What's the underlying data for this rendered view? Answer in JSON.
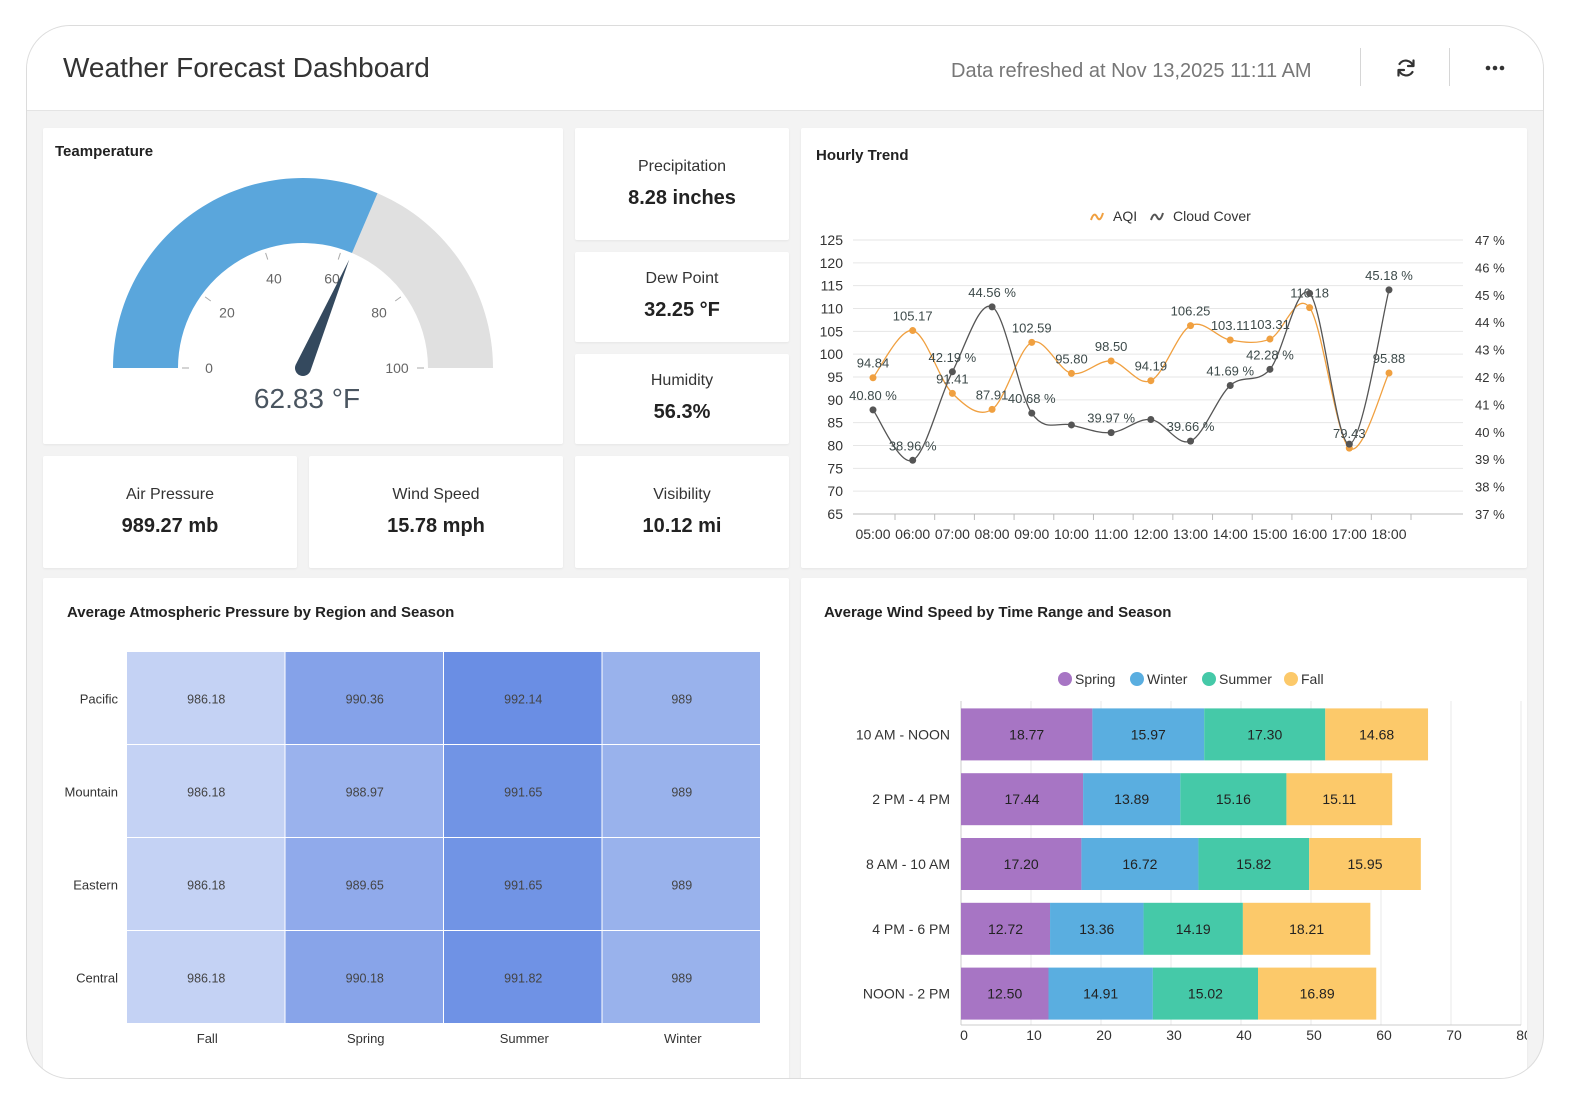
{
  "header": {
    "title": "Weather Forecast Dashboard",
    "refreshed": "Data refreshed at Nov 13,2025 11:11 AM",
    "refresh_icon": "refresh-icon",
    "more_icon": "more-horizontal-icon"
  },
  "colors": {
    "gauge_fill": "#5aa6dc",
    "gauge_track": "#e0e0e0",
    "needle": "#34495e",
    "aqi": "#f0a040",
    "cloud": "#555555",
    "spring": "#a775c4",
    "winter": "#5aaee0",
    "summer": "#45c9a8",
    "fall": "#fcc96a",
    "heat_low": "#c4d2f4",
    "heat_high": "#6a8ee4"
  },
  "temperature": {
    "title": "Teamperature",
    "value": 62.83,
    "value_label": "62.83 °F",
    "min": 0,
    "max": 100,
    "ticks": [
      "0",
      "20",
      "40",
      "60",
      "80",
      "100"
    ]
  },
  "kpis": {
    "precipitation": {
      "label": "Precipitation",
      "value": "8.28 inches"
    },
    "dew_point": {
      "label": "Dew Point",
      "value": "32.25 °F"
    },
    "humidity": {
      "label": "Humidity",
      "value": "56.3%"
    },
    "air_pressure": {
      "label": "Air Pressure",
      "value": "989.27 mb"
    },
    "wind_speed": {
      "label": "Wind Speed",
      "value": "15.78 mph"
    },
    "visibility": {
      "label": "Visibility",
      "value": "10.12 mi"
    }
  },
  "chart_data": [
    {
      "type": "line",
      "title": "Hourly Trend",
      "legend_position": "top",
      "x": [
        "05:00",
        "06:00",
        "07:00",
        "08:00",
        "09:00",
        "10:00",
        "11:00",
        "12:00",
        "13:00",
        "14:00",
        "15:00",
        "16:00",
        "17:00",
        "18:00"
      ],
      "ylim": [
        65,
        125
      ],
      "y_ticks": [
        "125",
        "120",
        "115",
        "110",
        "105",
        "100",
        "95",
        "90",
        "85",
        "80",
        "75",
        "70",
        "65"
      ],
      "y2lim": [
        37,
        47
      ],
      "y2_ticks": [
        "47 %",
        "46 %",
        "45 %",
        "44 %",
        "43 %",
        "42 %",
        "41 %",
        "40 %",
        "39 %",
        "38 %",
        "37 %"
      ],
      "series": [
        {
          "name": "AQI",
          "axis": "left",
          "values": [
            94.84,
            105.17,
            91.41,
            87.91,
            102.59,
            95.8,
            98.5,
            94.19,
            106.25,
            103.11,
            103.31,
            110.18,
            79.43,
            95.88
          ],
          "labels": [
            "94.84",
            "105.17",
            "91.41",
            "87.91",
            "102.59",
            "95.80",
            "98.50",
            "94.19",
            "106.25",
            "103.11",
            "103.31",
            "110.18",
            "79.43",
            "95.88"
          ]
        },
        {
          "name": "Cloud Cover",
          "axis": "right",
          "values": [
            40.8,
            38.96,
            42.19,
            44.56,
            40.68,
            40.25,
            39.97,
            40.45,
            39.66,
            41.69,
            42.28,
            45.05,
            39.55,
            45.18
          ],
          "labels": [
            "40.80 %",
            "38.96 %",
            "42.19 %",
            "44.56 %",
            "40.68 %",
            "",
            "39.97 %",
            "",
            "39.66 %",
            "41.69 %",
            "42.28 %",
            "",
            "",
            "45.18 %"
          ]
        }
      ]
    },
    {
      "type": "heatmap",
      "title": "Average Atmospheric Pressure by Region and Season",
      "rows": [
        "Pacific",
        "Mountain",
        "Eastern",
        "Central"
      ],
      "columns": [
        "Fall",
        "Spring",
        "Summer",
        "Winter"
      ],
      "values": [
        [
          986.18,
          990.36,
          992.14,
          989
        ],
        [
          986.18,
          988.97,
          991.65,
          989
        ],
        [
          986.18,
          989.65,
          991.65,
          989
        ],
        [
          986.18,
          990.18,
          991.82,
          989
        ]
      ],
      "labels": [
        [
          "986.18",
          "990.36",
          "992.14",
          "989"
        ],
        [
          "986.18",
          "988.97",
          "991.65",
          "989"
        ],
        [
          "986.18",
          "989.65",
          "991.65",
          "989"
        ],
        [
          "986.18",
          "990.18",
          "991.82",
          "989"
        ]
      ]
    },
    {
      "type": "bar",
      "orientation": "horizontal",
      "stacked": true,
      "title": "Average Wind Speed by Time Range and Season",
      "legend_position": "top",
      "categories": [
        "10 AM - NOON",
        "2 PM - 4 PM",
        "8 AM - 10 AM",
        "4 PM - 6 PM",
        "NOON - 2 PM"
      ],
      "xlim": [
        0,
        80
      ],
      "x_ticks": [
        "0",
        "10",
        "20",
        "30",
        "40",
        "50",
        "60",
        "70",
        "80"
      ],
      "series": [
        {
          "name": "Spring",
          "values": [
            18.77,
            17.44,
            17.2,
            12.72,
            12.5
          ],
          "labels": [
            "18.77",
            "17.44",
            "17.20",
            "12.72",
            "12.50"
          ]
        },
        {
          "name": "Winter",
          "values": [
            15.97,
            13.89,
            16.72,
            13.36,
            14.91
          ],
          "labels": [
            "15.97",
            "13.89",
            "16.72",
            "13.36",
            "14.91"
          ]
        },
        {
          "name": "Summer",
          "values": [
            17.3,
            15.16,
            15.82,
            14.19,
            15.02
          ],
          "labels": [
            "17.30",
            "15.16",
            "15.82",
            "14.19",
            "15.02"
          ]
        },
        {
          "name": "Fall",
          "values": [
            14.68,
            15.11,
            15.95,
            18.21,
            16.89
          ],
          "labels": [
            "14.68",
            "15.11",
            "15.95",
            "18.21",
            "16.89"
          ]
        }
      ]
    }
  ]
}
